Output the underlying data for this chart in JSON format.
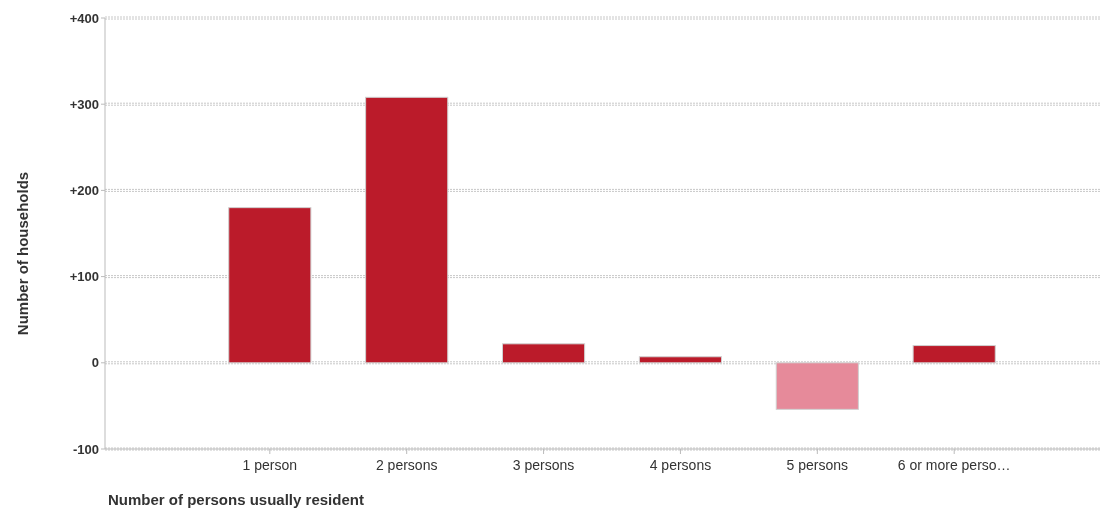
{
  "chart_data": {
    "type": "bar",
    "xlabel": "Number of persons usually resident",
    "ylabel": "Number of households",
    "categories": [
      "1 person",
      "2 persons",
      "3 persons",
      "4 persons",
      "5 persons",
      "6 or more perso…"
    ],
    "values": [
      180,
      308,
      22,
      7,
      -54,
      20
    ],
    "colors": [
      "#bb1b2a",
      "#bb1b2a",
      "#bb1b2a",
      "#bb1b2a",
      "#e68a9a",
      "#bb1b2a"
    ],
    "ylim": [
      -100,
      400
    ],
    "yticks": [
      {
        "value": -100,
        "label": "-100"
      },
      0,
      {
        "value": 100,
        "label": "+100"
      },
      {
        "value": 200,
        "label": "+200"
      },
      {
        "value": 300,
        "label": "+300"
      },
      {
        "value": 400,
        "label": "+400"
      }
    ],
    "grid": "y"
  }
}
